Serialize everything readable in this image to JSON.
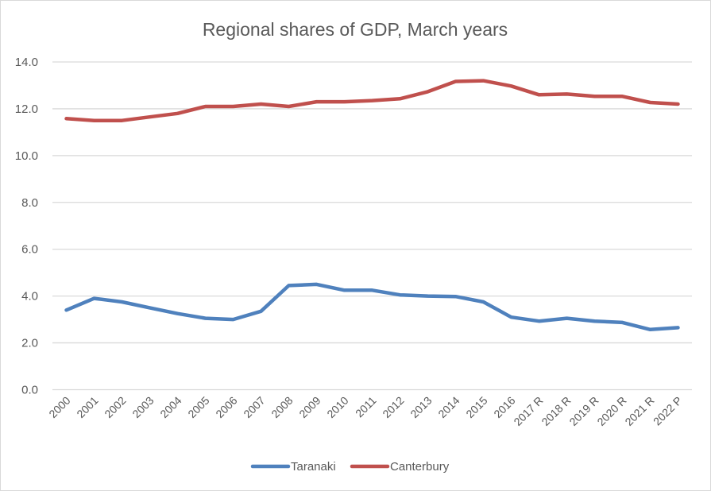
{
  "chart_data": {
    "type": "line",
    "title": "Regional shares of GDP, March years",
    "xlabel": "",
    "ylabel": "",
    "ylim": [
      0,
      14
    ],
    "yticks": [
      "0.0",
      "2.0",
      "4.0",
      "6.0",
      "8.0",
      "10.0",
      "12.0",
      "14.0"
    ],
    "grid": true,
    "legend_position": "bottom",
    "categories": [
      "2000",
      "2001",
      "2002",
      "2003",
      "2004",
      "2005",
      "2006",
      "2007",
      "2008",
      "2009",
      "2010",
      "2011",
      "2012",
      "2013",
      "2014",
      "2015",
      "2016",
      "2017 R",
      "2018 R",
      "2019 R",
      "2020 R",
      "2021 R",
      "2022 P"
    ],
    "series": [
      {
        "name": "Taranaki",
        "color": "#4f81bd",
        "values": [
          3.4,
          3.9,
          3.75,
          3.5,
          3.25,
          3.05,
          3.0,
          3.35,
          4.45,
          4.5,
          4.25,
          4.25,
          4.05,
          4.0,
          3.98,
          3.75,
          3.1,
          2.93,
          3.05,
          2.93,
          2.87,
          2.57,
          2.65
        ]
      },
      {
        "name": "Canterbury",
        "color": "#c0504d",
        "values": [
          11.58,
          11.5,
          11.5,
          11.65,
          11.8,
          12.1,
          12.1,
          12.2,
          12.1,
          12.3,
          12.3,
          12.35,
          12.43,
          12.73,
          13.17,
          13.2,
          12.97,
          12.6,
          12.63,
          12.53,
          12.53,
          12.27,
          12.2
        ]
      }
    ]
  }
}
